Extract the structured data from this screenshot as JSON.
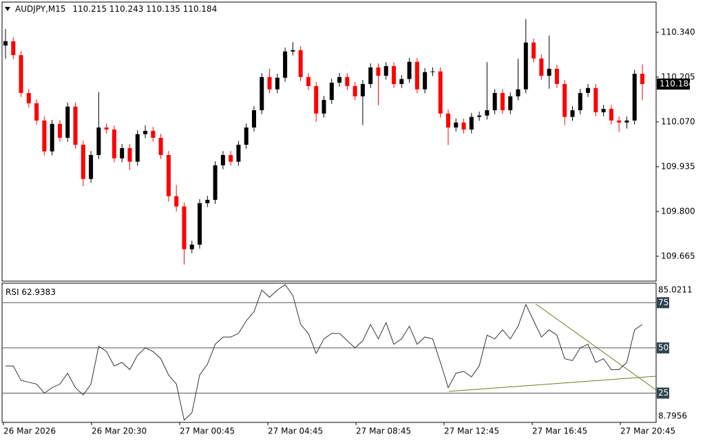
{
  "chart_data": [
    {
      "type": "candlestick",
      "title": "AUDJPY,M15",
      "up_color": "#000000",
      "down_color": "#ff0000",
      "open": [
        110.3,
        110.313,
        110.271,
        110.157,
        110.126,
        110.074,
        109.981,
        110.064,
        110.022,
        110.116,
        110.001,
        109.898,
        109.97,
        110.053,
        110.047,
        109.96,
        109.991,
        109.95,
        110.033,
        110.043,
        110.022,
        109.97,
        109.846,
        109.815,
        109.686,
        109.7,
        109.825,
        109.835,
        109.939,
        109.97,
        109.95,
        110.001,
        110.053,
        110.105,
        110.205,
        110.168,
        110.203,
        110.282,
        110.286,
        110.205,
        110.178,
        110.095,
        110.136,
        110.188,
        110.205,
        110.178,
        110.147,
        110.184,
        110.234,
        110.209,
        110.238,
        110.184,
        110.199,
        110.251,
        110.168,
        110.22,
        110.222,
        110.095,
        110.053,
        110.068,
        110.047,
        110.085,
        110.089,
        110.105,
        110.157,
        110.105,
        110.147,
        110.168,
        110.309,
        110.261,
        110.209,
        110.23,
        110.184,
        110.085,
        110.105,
        110.157,
        110.172,
        110.099,
        110.109,
        110.074,
        110.068,
        110.074,
        110.215
      ],
      "high": [
        110.35,
        110.325,
        110.283,
        110.169,
        110.138,
        110.086,
        110.076,
        110.076,
        110.128,
        110.128,
        110.013,
        109.982,
        110.16,
        110.065,
        110.059,
        110.003,
        110.003,
        110.045,
        110.06,
        110.055,
        110.034,
        109.982,
        109.88,
        109.827,
        109.712,
        109.837,
        109.847,
        109.951,
        109.982,
        109.982,
        110.013,
        110.065,
        110.117,
        110.217,
        110.23,
        110.215,
        110.294,
        110.31,
        110.298,
        110.217,
        110.19,
        110.148,
        110.2,
        110.217,
        110.217,
        110.19,
        110.196,
        110.246,
        110.246,
        110.25,
        110.25,
        110.211,
        110.263,
        110.263,
        110.232,
        110.234,
        110.234,
        110.107,
        110.08,
        110.08,
        110.097,
        110.101,
        110.25,
        110.169,
        110.169,
        110.159,
        110.26,
        110.38,
        110.321,
        110.273,
        110.33,
        110.242,
        110.196,
        110.117,
        110.169,
        110.184,
        110.184,
        110.121,
        110.121,
        110.086,
        110.086,
        110.227,
        110.243
      ],
      "low": [
        110.26,
        110.259,
        110.145,
        110.114,
        110.062,
        109.969,
        109.969,
        110.01,
        110.01,
        109.989,
        109.876,
        109.886,
        109.958,
        110.035,
        109.948,
        109.948,
        109.925,
        109.938,
        110.021,
        110.01,
        109.958,
        109.83,
        109.8,
        109.64,
        109.674,
        109.688,
        109.813,
        109.823,
        109.927,
        109.938,
        109.938,
        109.989,
        110.041,
        110.093,
        110.156,
        110.156,
        110.191,
        110.27,
        110.193,
        110.166,
        110.07,
        110.083,
        110.124,
        110.176,
        110.166,
        110.135,
        110.06,
        110.172,
        110.12,
        110.197,
        110.172,
        110.172,
        110.187,
        110.156,
        110.156,
        110.208,
        110.083,
        110.0,
        110.041,
        110.035,
        110.035,
        110.073,
        110.077,
        110.093,
        110.093,
        110.093,
        110.135,
        110.156,
        110.249,
        110.197,
        110.17,
        110.172,
        110.06,
        110.073,
        110.093,
        110.145,
        110.087,
        110.087,
        110.062,
        110.04,
        110.05,
        110.062,
        110.135
      ],
      "close": [
        110.313,
        110.271,
        110.157,
        110.126,
        110.074,
        109.981,
        110.064,
        110.022,
        110.116,
        110.001,
        109.898,
        109.97,
        110.053,
        110.047,
        109.96,
        109.991,
        109.95,
        110.033,
        110.043,
        110.022,
        109.97,
        109.846,
        109.815,
        109.686,
        109.7,
        109.825,
        109.835,
        109.939,
        109.97,
        109.95,
        110.001,
        110.053,
        110.105,
        110.205,
        110.168,
        110.203,
        110.282,
        110.286,
        110.205,
        110.178,
        110.095,
        110.136,
        110.188,
        110.205,
        110.178,
        110.147,
        110.184,
        110.234,
        110.209,
        110.238,
        110.184,
        110.199,
        110.251,
        110.168,
        110.22,
        110.222,
        110.095,
        110.053,
        110.068,
        110.047,
        110.085,
        110.089,
        110.105,
        110.157,
        110.105,
        110.147,
        110.168,
        110.309,
        110.261,
        110.209,
        110.23,
        110.184,
        110.085,
        110.105,
        110.157,
        110.172,
        110.099,
        110.109,
        110.074,
        110.068,
        110.074,
        110.215,
        110.184
      ],
      "ylim": [
        109.59,
        110.431
      ],
      "yticks": [
        {
          "value": 110.34,
          "label": "110.340"
        },
        110.205,
        {
          "value": 110.07,
          "label": "110.070"
        },
        109.935,
        {
          "value": 109.8,
          "label": "109.800"
        },
        109.665
      ],
      "x_labels": [
        "26 Mar 2026",
        "26 Mar 20:30",
        "27 Mar 00:45",
        "27 Mar 04:45",
        "27 Mar 08:45",
        "27 Mar 12:45",
        "27 Mar 16:45",
        "27 Mar 20:45"
      ]
    },
    {
      "type": "line",
      "name": "RSI",
      "color": "#333333",
      "values": [
        40,
        40,
        32,
        31,
        30,
        25,
        28,
        30,
        36,
        28,
        24,
        30,
        51,
        48,
        40,
        42,
        38,
        46,
        50,
        48,
        44,
        35,
        30,
        10,
        14,
        35,
        41,
        52,
        56,
        56,
        58,
        65,
        70,
        82,
        78,
        82,
        85,
        79,
        63,
        58,
        47,
        55,
        58,
        58,
        54,
        50,
        54,
        63,
        55,
        64,
        52,
        55,
        62,
        52,
        56,
        55,
        42,
        28,
        36,
        37,
        34,
        40,
        57,
        55,
        60,
        55,
        62,
        74,
        65,
        56,
        60,
        57,
        44,
        43,
        50,
        52,
        42,
        44,
        38,
        38,
        42,
        60,
        62.9383
      ],
      "ylim": [
        8.7956,
        85.0211
      ],
      "yticks": [
        25,
        50,
        75
      ]
    }
  ]
}
